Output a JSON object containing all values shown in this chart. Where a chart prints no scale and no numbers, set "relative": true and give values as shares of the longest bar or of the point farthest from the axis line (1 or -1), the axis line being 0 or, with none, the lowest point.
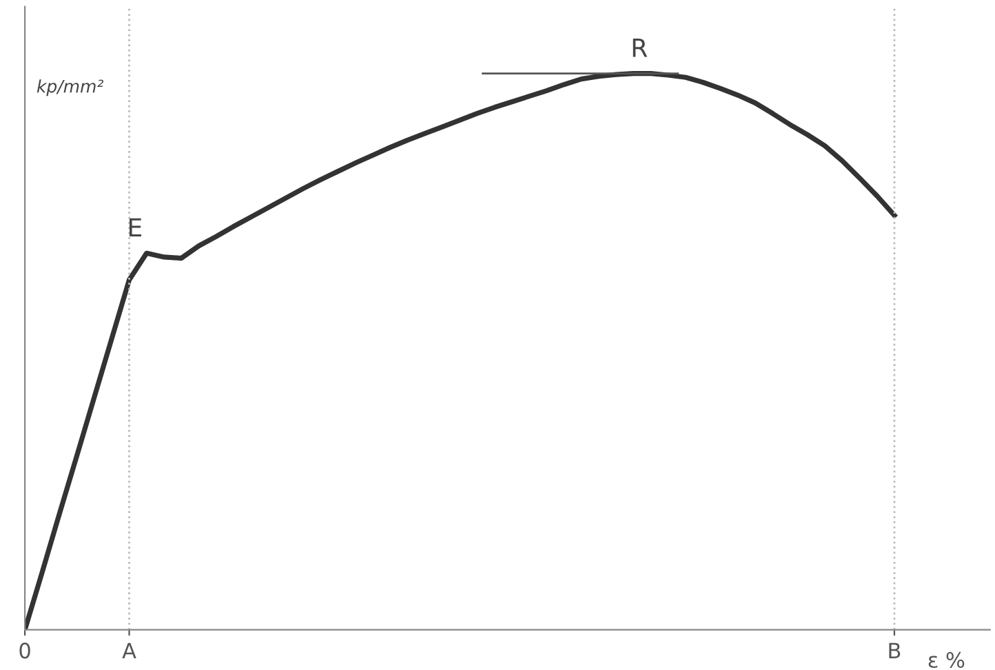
{
  "chart_data": {
    "type": "line",
    "relative": true,
    "xlabel": "ε %",
    "ylabel": "kp/mm²",
    "categories": [
      "0",
      null,
      null,
      null,
      null,
      null,
      "A",
      null,
      null,
      null,
      null,
      null,
      null,
      null,
      null,
      null,
      null,
      null,
      null,
      null,
      null,
      null,
      null,
      null,
      null,
      null,
      null,
      null,
      null,
      null,
      null,
      null,
      null,
      null,
      null,
      null,
      null,
      null,
      null,
      null,
      null,
      null,
      null,
      null,
      null,
      null,
      null,
      null,
      null,
      null,
      "B"
    ],
    "series": [
      {
        "color": "#333333",
        "values": [
          0,
          0.104,
          0.21,
          0.314,
          0.419,
          0.524,
          0.629,
          0.677,
          0.67,
          0.668,
          0.69,
          0.707,
          0.725,
          0.742,
          0.759,
          0.776,
          0.793,
          0.809,
          0.824,
          0.839,
          0.853,
          0.867,
          0.88,
          0.892,
          0.904,
          0.916,
          0.928,
          0.939,
          0.949,
          0.959,
          0.969,
          0.98,
          0.99,
          0.995,
          0.998,
          1.0,
          1.0,
          0.997,
          0.993,
          0.984,
          0.973,
          0.961,
          0.947,
          0.928,
          0.908,
          0.89,
          0.87,
          0.843,
          0.812,
          0.78,
          0.745
        ]
      }
    ],
    "tick_labels": "x",
    "ref_lines": [
      {
        "axis": "x",
        "value": "A",
        "color": "#bbbbbb",
        "line_style": "dotted"
      },
      {
        "axis": "x",
        "value": "B",
        "color": "#bbbbbb",
        "line_style": "dotted"
      }
    ],
    "annotations": [
      {
        "text": "E",
        "x": "A",
        "y": 0.677
      },
      {
        "text": "R",
        "y": 1.0
      }
    ],
    "grid": false,
    "marker": "none",
    "line_style": "solid"
  }
}
